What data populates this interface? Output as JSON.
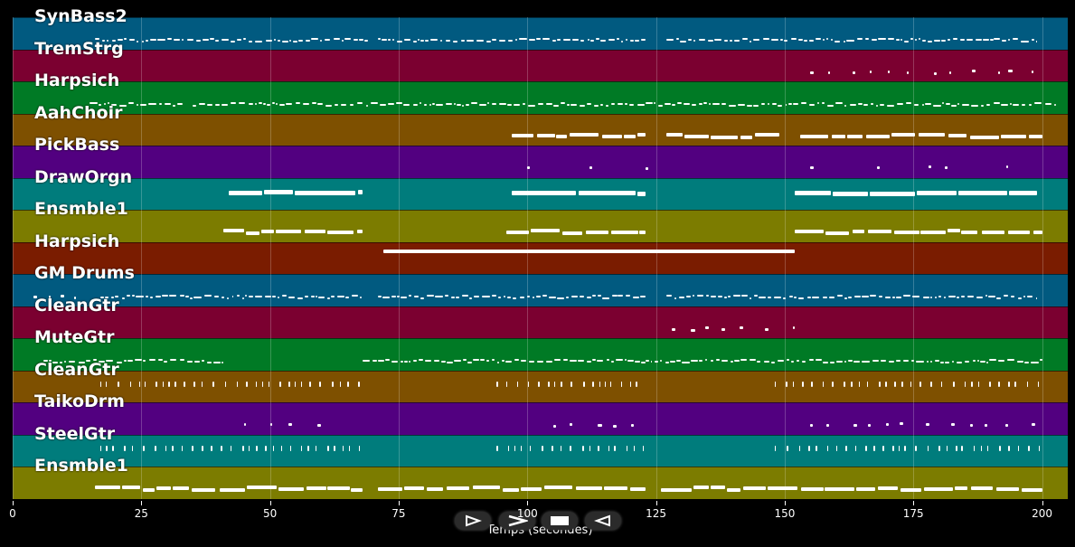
{
  "window": {
    "title": ""
  },
  "axis": {
    "xlabel": "Temps (secondes)",
    "xlim": [
      0,
      205
    ],
    "ticks": [
      0,
      25,
      50,
      75,
      100,
      125,
      150,
      175,
      200
    ]
  },
  "colors": {
    "blue": "#015a80",
    "crimson": "#7b0030",
    "green": "#007a25",
    "brown": "#7e5000",
    "purple": "#520080",
    "teal": "#007c7c",
    "olive": "#7c7c00",
    "rust": "#7a1c00"
  },
  "tracks": [
    {
      "name": "SynBass2",
      "color": "#015a80",
      "segments": [
        [
          16,
          69,
          "dense"
        ],
        [
          71,
          123,
          "dense"
        ],
        [
          127,
          199,
          "dense"
        ]
      ]
    },
    {
      "name": "TremStrg",
      "color": "#7b0030",
      "segments": [
        [
          155,
          199,
          "sparse"
        ]
      ]
    },
    {
      "name": "Harpsich",
      "color": "#007a25",
      "segments": [
        [
          15,
          33,
          "dense"
        ],
        [
          35,
          203,
          "dense"
        ]
      ]
    },
    {
      "name": "AahChoir",
      "color": "#7e5000",
      "segments": [
        [
          97,
          123,
          "long"
        ],
        [
          127,
          149,
          "long"
        ],
        [
          153,
          200,
          "long"
        ]
      ]
    },
    {
      "name": "PickBass",
      "color": "#520080",
      "segments": [
        [
          100,
          101,
          "sparse"
        ],
        [
          112,
          114,
          "sparse"
        ],
        [
          123,
          123.5,
          "sparse"
        ],
        [
          155,
          157,
          "sparse"
        ],
        [
          168,
          170,
          "sparse"
        ],
        [
          178,
          183,
          "sparse"
        ],
        [
          193,
          195,
          "sparse"
        ]
      ]
    },
    {
      "name": "DrawOrgn",
      "color": "#007c7c",
      "segments": [
        [
          42,
          68,
          "block"
        ],
        [
          97,
          123,
          "block"
        ],
        [
          152,
          199,
          "block"
        ]
      ]
    },
    {
      "name": "Ensmble1",
      "color": "#7c7c00",
      "segments": [
        [
          41,
          68,
          "long"
        ],
        [
          96,
          123,
          "long"
        ],
        [
          152,
          200,
          "long"
        ]
      ]
    },
    {
      "name": "Harpsich",
      "color": "#7a1c00",
      "segments": [
        [
          72,
          152,
          "sustain"
        ]
      ]
    },
    {
      "name": "GM Drums",
      "color": "#015a80",
      "segments": [
        [
          4,
          16,
          "sparse"
        ],
        [
          17,
          68,
          "dense"
        ],
        [
          71,
          123,
          "dense"
        ],
        [
          127,
          199,
          "dense"
        ]
      ]
    },
    {
      "name": "CleanGtr",
      "color": "#7b0030",
      "segments": [
        [
          128,
          152,
          "sparse"
        ]
      ]
    },
    {
      "name": "MuteGtr",
      "color": "#007a25",
      "segments": [
        [
          6,
          41,
          "dense"
        ],
        [
          68,
          123,
          "dense"
        ],
        [
          123,
          200,
          "dense"
        ]
      ]
    },
    {
      "name": "CleanGtr",
      "color": "#7e5000",
      "segments": [
        [
          17,
          68,
          "staccato"
        ],
        [
          94,
          123,
          "staccato"
        ],
        [
          148,
          200,
          "staccato"
        ]
      ]
    },
    {
      "name": "TaikoDrm",
      "color": "#520080",
      "segments": [
        [
          45,
          63,
          "sparse"
        ],
        [
          105,
          122,
          "sparse"
        ],
        [
          155,
          200,
          "sparse"
        ]
      ]
    },
    {
      "name": "SteelGtr",
      "color": "#007c7c",
      "segments": [
        [
          17,
          68,
          "staccato"
        ],
        [
          94,
          123,
          "staccato"
        ],
        [
          148,
          200,
          "staccato"
        ]
      ]
    },
    {
      "name": "Ensmble1",
      "color": "#7c7c00",
      "segments": [
        [
          16,
          68,
          "long"
        ],
        [
          71,
          123,
          "long"
        ],
        [
          126,
          200,
          "long"
        ]
      ]
    }
  ],
  "controls": {
    "play_label": "play",
    "forward_label": "forward",
    "stop_label": "stop",
    "back_label": "back"
  }
}
